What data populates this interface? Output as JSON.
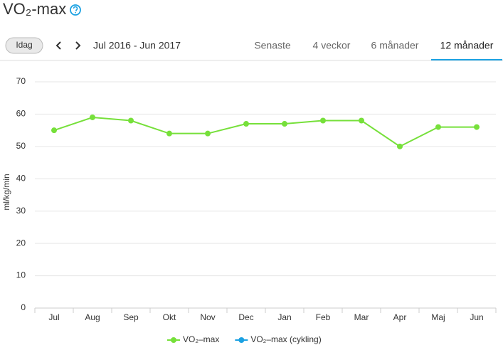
{
  "header": {
    "title": "VO₂-max"
  },
  "toolbar": {
    "today_button": "Idag",
    "range": "Jul 2016 - Jun 2017",
    "tabs": [
      "Senaste",
      "4 veckor",
      "6 månader",
      "12 månader"
    ],
    "active_tab": 3
  },
  "chart_data": {
    "type": "line",
    "y_label": "ml/kg/min",
    "categories": [
      "Jul",
      "Aug",
      "Sep",
      "Okt",
      "Nov",
      "Dec",
      "Jan",
      "Feb",
      "Mar",
      "Apr",
      "Maj",
      "Jun"
    ],
    "series": [
      {
        "name": "VO₂–max",
        "color": "#76e03a",
        "values": [
          55,
          59,
          58,
          54,
          54,
          57,
          57,
          58,
          58,
          50,
          56,
          56
        ]
      },
      {
        "name": "VO₂–max (cykling)",
        "color": "#1ba1e2",
        "values": [
          null,
          null,
          null,
          null,
          null,
          null,
          null,
          null,
          null,
          null,
          null,
          null
        ]
      }
    ],
    "ylim": [
      0,
      70
    ],
    "yticks": [
      0,
      10,
      20,
      30,
      40,
      50,
      60,
      70
    ],
    "grid": true
  }
}
